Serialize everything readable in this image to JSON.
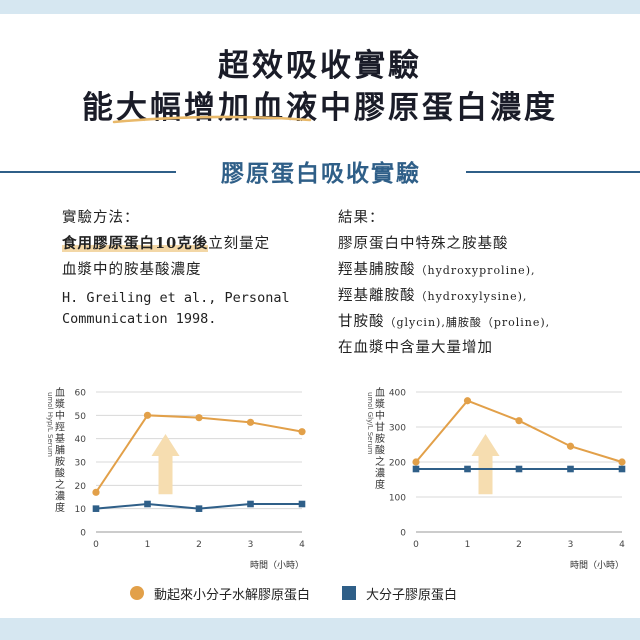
{
  "header": {
    "title_line1": "超效吸收實驗",
    "title_line2": "能大幅增加血液中膠原蛋白濃度"
  },
  "section": {
    "title": "膠原蛋白吸收實驗"
  },
  "method": {
    "label": "實驗方法：",
    "highlight": "食用膠原蛋白10克後",
    "line1_rest": "立刻量定",
    "line2": "血漿中的胺基酸濃度",
    "citation_line1": "H. Greiling et al., Personal",
    "citation_line2": "Communication 1998."
  },
  "result": {
    "label": "結果：",
    "line1": "膠原蛋白中特殊之胺基酸",
    "line2_cn": "羥基脯胺酸",
    "line2_en": "（hydroxyproline),",
    "line3_cn": "羥基離胺酸",
    "line3_en": "（hydroxylysine),",
    "line4_a": "甘胺酸",
    "line4_b": "（glycin),脯胺酸",
    "line4_c": "（proline),",
    "line5": "在血漿中含量大量增加"
  },
  "legend": {
    "small": "動起來小分子水解膠原蛋白",
    "large": "大分子膠原蛋白"
  },
  "colors": {
    "orange": "#e2a049",
    "blue": "#2f5f88",
    "arrow": "#f6ddb0",
    "grid": "#d8d8d8"
  },
  "chart_data": [
    {
      "type": "line",
      "ylabel_cn": "血漿中羥基脯胺酸之濃度",
      "ylabel_unit": "umol Hyp/L Serum",
      "xlabel": "時間（小時）",
      "x": [
        0,
        1,
        2,
        3,
        4
      ],
      "yticks": [
        0,
        10,
        20,
        30,
        40,
        50,
        60
      ],
      "ylim": [
        0,
        60
      ],
      "series": [
        {
          "name": "動起來小分子水解膠原蛋白",
          "color": "#e2a049",
          "marker": "circle",
          "values": [
            17,
            50,
            49,
            47,
            43
          ]
        },
        {
          "name": "大分子膠原蛋白",
          "color": "#2f5f88",
          "marker": "square",
          "values": [
            10,
            12,
            10,
            12,
            12
          ]
        }
      ]
    },
    {
      "type": "line",
      "ylabel_cn": "血漿中甘胺酸之濃度",
      "ylabel_unit": "umol Gly/L Serum",
      "xlabel": "時間（小時）",
      "x": [
        0,
        1,
        2,
        3,
        4
      ],
      "yticks": [
        0,
        100,
        200,
        300,
        400
      ],
      "ylim": [
        0,
        400
      ],
      "series": [
        {
          "name": "動起來小分子水解膠原蛋白",
          "color": "#e2a049",
          "marker": "circle",
          "values": [
            200,
            375,
            318,
            245,
            200
          ]
        },
        {
          "name": "大分子膠原蛋白",
          "color": "#2f5f88",
          "marker": "square",
          "values": [
            180,
            180,
            180,
            180,
            180
          ]
        }
      ]
    }
  ]
}
